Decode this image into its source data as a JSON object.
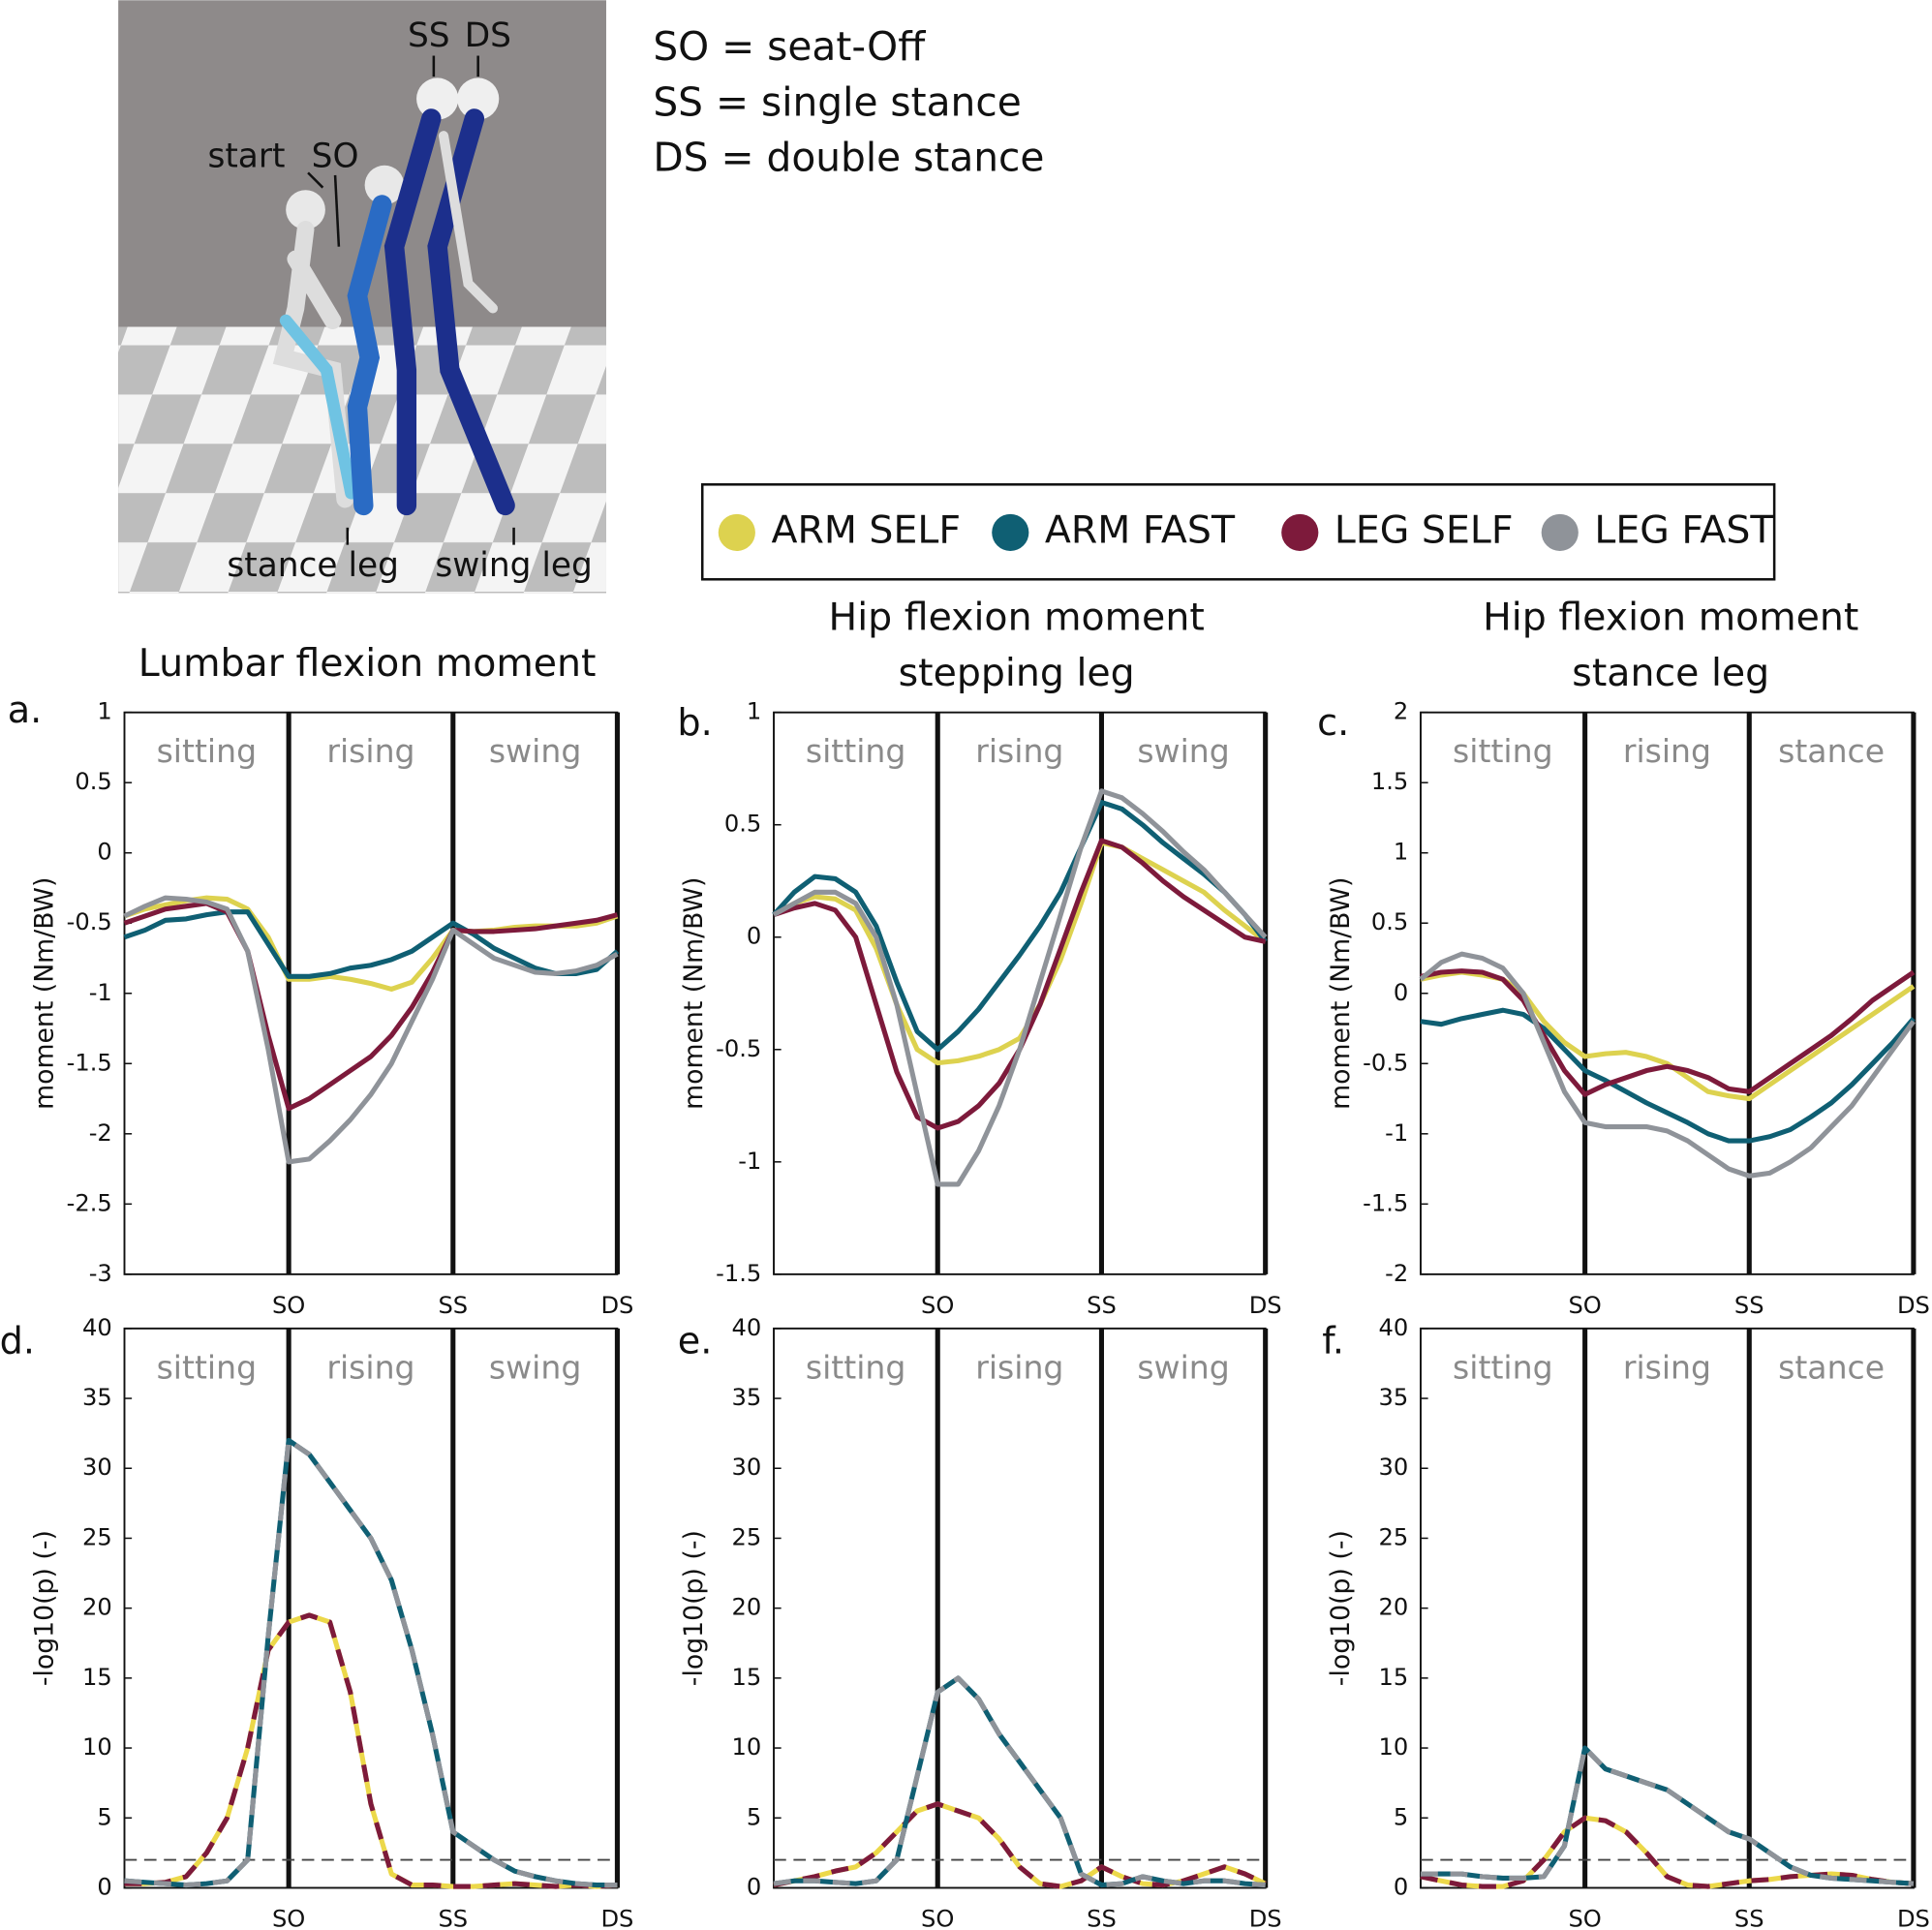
{
  "definitions": [
    "SO = seat-Off",
    "SS = single stance",
    "DS = double stance"
  ],
  "illustration": {
    "labels": [
      "SS",
      "DS",
      "start",
      "SO",
      "stance leg",
      "swing leg"
    ]
  },
  "chart_data": [
    {
      "type": "line",
      "panel_label": "a.",
      "title": [
        "Lumbar flexion moment"
      ],
      "y_label": "moment (Nm/BW)",
      "phases": [
        "sitting",
        "rising",
        "swing"
      ],
      "x": [
        0,
        0.125,
        0.25,
        0.375,
        0.5,
        0.625,
        0.75,
        0.875,
        1,
        1.125,
        1.25,
        1.375,
        1.5,
        1.625,
        1.75,
        1.875,
        2,
        2.125,
        2.25,
        2.375,
        2.5,
        2.625,
        2.75,
        2.875,
        3
      ],
      "xlim": [
        0,
        3
      ],
      "xticks": [
        {
          "value": 1,
          "label": "SO"
        },
        {
          "value": 2,
          "label": "SS"
        },
        {
          "value": 3,
          "label": "DS"
        }
      ],
      "ylim": [
        -3,
        1
      ],
      "yticks": [
        -3,
        -2.5,
        -2,
        -1.5,
        -1,
        -0.5,
        0,
        0.5,
        1
      ],
      "series": [
        {
          "name": "ARM SELF",
          "color": "#ddd24f",
          "values": [
            -0.45,
            -0.4,
            -0.37,
            -0.34,
            -0.32,
            -0.33,
            -0.4,
            -0.6,
            -0.9,
            -0.9,
            -0.88,
            -0.9,
            -0.93,
            -0.97,
            -0.92,
            -0.75,
            -0.55,
            -0.56,
            -0.55,
            -0.53,
            -0.52,
            -0.52,
            -0.52,
            -0.5,
            -0.45
          ]
        },
        {
          "name": "ARM FAST",
          "color": "#0f5f73",
          "values": [
            -0.6,
            -0.55,
            -0.48,
            -0.47,
            -0.44,
            -0.42,
            -0.42,
            -0.65,
            -0.88,
            -0.88,
            -0.86,
            -0.82,
            -0.8,
            -0.76,
            -0.7,
            -0.6,
            -0.5,
            -0.58,
            -0.68,
            -0.75,
            -0.82,
            -0.86,
            -0.86,
            -0.83,
            -0.7
          ]
        },
        {
          "name": "LEG SELF",
          "color": "#7d1a3b",
          "values": [
            -0.5,
            -0.45,
            -0.4,
            -0.38,
            -0.36,
            -0.42,
            -0.7,
            -1.3,
            -1.82,
            -1.75,
            -1.65,
            -1.55,
            -1.45,
            -1.3,
            -1.1,
            -0.85,
            -0.55,
            -0.56,
            -0.56,
            -0.55,
            -0.54,
            -0.52,
            -0.5,
            -0.48,
            -0.44
          ]
        },
        {
          "name": "LEG FAST",
          "color": "#8f9399",
          "values": [
            -0.45,
            -0.38,
            -0.32,
            -0.33,
            -0.35,
            -0.4,
            -0.7,
            -1.4,
            -2.2,
            -2.18,
            -2.05,
            -1.9,
            -1.72,
            -1.5,
            -1.2,
            -0.9,
            -0.55,
            -0.65,
            -0.75,
            -0.8,
            -0.85,
            -0.86,
            -0.84,
            -0.8,
            -0.72
          ]
        }
      ]
    },
    {
      "type": "line",
      "panel_label": "b.",
      "title": [
        "Hip flexion moment",
        "stepping leg"
      ],
      "y_label": "moment (Nm/BW)",
      "phases": [
        "sitting",
        "rising",
        "swing"
      ],
      "x": [
        0,
        0.125,
        0.25,
        0.375,
        0.5,
        0.625,
        0.75,
        0.875,
        1,
        1.125,
        1.25,
        1.375,
        1.5,
        1.625,
        1.75,
        1.875,
        2,
        2.125,
        2.25,
        2.375,
        2.5,
        2.625,
        2.75,
        2.875,
        3
      ],
      "xlim": [
        0,
        3
      ],
      "xticks": [
        {
          "value": 1,
          "label": "SO"
        },
        {
          "value": 2,
          "label": "SS"
        },
        {
          "value": 3,
          "label": "DS"
        }
      ],
      "ylim": [
        -1.5,
        1
      ],
      "yticks": [
        -1.5,
        -1,
        -0.5,
        0,
        0.5,
        1
      ],
      "series": [
        {
          "name": "ARM SELF",
          "color": "#ddd24f",
          "values": [
            0.1,
            0.15,
            0.18,
            0.17,
            0.12,
            -0.05,
            -0.3,
            -0.5,
            -0.56,
            -0.55,
            -0.53,
            -0.5,
            -0.45,
            -0.3,
            -0.1,
            0.15,
            0.42,
            0.4,
            0.35,
            0.3,
            0.25,
            0.2,
            0.12,
            0.05,
            -0.02
          ]
        },
        {
          "name": "ARM FAST",
          "color": "#0f5f73",
          "values": [
            0.1,
            0.2,
            0.27,
            0.26,
            0.2,
            0.05,
            -0.2,
            -0.42,
            -0.5,
            -0.42,
            -0.32,
            -0.2,
            -0.08,
            0.05,
            0.2,
            0.4,
            0.6,
            0.57,
            0.5,
            0.42,
            0.35,
            0.28,
            0.2,
            0.1,
            -0.02
          ]
        },
        {
          "name": "LEG SELF",
          "color": "#7d1a3b",
          "values": [
            0.1,
            0.13,
            0.15,
            0.12,
            0,
            -0.3,
            -0.6,
            -0.8,
            -0.85,
            -0.82,
            -0.75,
            -0.65,
            -0.5,
            -0.3,
            -0.05,
            0.2,
            0.43,
            0.4,
            0.33,
            0.25,
            0.18,
            0.12,
            0.06,
            0,
            -0.02
          ]
        },
        {
          "name": "LEG FAST",
          "color": "#8f9399",
          "values": [
            0.1,
            0.15,
            0.2,
            0.2,
            0.15,
            0,
            -0.3,
            -0.7,
            -1.1,
            -1.1,
            -0.95,
            -0.75,
            -0.5,
            -0.2,
            0.1,
            0.4,
            0.65,
            0.62,
            0.55,
            0.47,
            0.38,
            0.3,
            0.2,
            0.1,
            0
          ]
        }
      ]
    },
    {
      "type": "line",
      "panel_label": "c.",
      "title": [
        "Hip flexion moment",
        "stance leg"
      ],
      "y_label": "moment (Nm/BW)",
      "phases": [
        "sitting",
        "rising",
        "stance"
      ],
      "x": [
        0,
        0.125,
        0.25,
        0.375,
        0.5,
        0.625,
        0.75,
        0.875,
        1,
        1.125,
        1.25,
        1.375,
        1.5,
        1.625,
        1.75,
        1.875,
        2,
        2.125,
        2.25,
        2.375,
        2.5,
        2.625,
        2.75,
        2.875,
        3
      ],
      "xlim": [
        0,
        3
      ],
      "xticks": [
        {
          "value": 1,
          "label": "SO"
        },
        {
          "value": 2,
          "label": "SS"
        },
        {
          "value": 3,
          "label": "DS"
        }
      ],
      "ylim": [
        -2,
        2
      ],
      "yticks": [
        -2,
        -1.5,
        -1,
        -0.5,
        0,
        0.5,
        1,
        1.5,
        2
      ],
      "series": [
        {
          "name": "ARM SELF",
          "color": "#ddd24f",
          "values": [
            0.1,
            0.13,
            0.15,
            0.13,
            0.1,
            0,
            -0.2,
            -0.35,
            -0.45,
            -0.43,
            -0.42,
            -0.45,
            -0.5,
            -0.6,
            -0.7,
            -0.73,
            -0.75,
            -0.65,
            -0.55,
            -0.45,
            -0.35,
            -0.25,
            -0.15,
            -0.05,
            0.05
          ]
        },
        {
          "name": "ARM FAST",
          "color": "#0f5f73",
          "values": [
            -0.2,
            -0.22,
            -0.18,
            -0.15,
            -0.12,
            -0.15,
            -0.25,
            -0.4,
            -0.55,
            -0.62,
            -0.7,
            -0.78,
            -0.85,
            -0.92,
            -1,
            -1.05,
            -1.05,
            -1.02,
            -0.97,
            -0.88,
            -0.78,
            -0.65,
            -0.5,
            -0.35,
            -0.18
          ]
        },
        {
          "name": "LEG SELF",
          "color": "#7d1a3b",
          "values": [
            0.12,
            0.15,
            0.16,
            0.15,
            0.1,
            -0.05,
            -0.3,
            -0.55,
            -0.72,
            -0.65,
            -0.6,
            -0.55,
            -0.52,
            -0.55,
            -0.6,
            -0.68,
            -0.7,
            -0.6,
            -0.5,
            -0.4,
            -0.3,
            -0.18,
            -0.05,
            0.05,
            0.15
          ]
        },
        {
          "name": "LEG FAST",
          "color": "#8f9399",
          "values": [
            0.1,
            0.22,
            0.28,
            0.25,
            0.18,
            0,
            -0.35,
            -0.7,
            -0.92,
            -0.95,
            -0.95,
            -0.95,
            -0.98,
            -1.05,
            -1.15,
            -1.25,
            -1.3,
            -1.28,
            -1.2,
            -1.1,
            -0.95,
            -0.8,
            -0.6,
            -0.4,
            -0.2
          ]
        }
      ]
    },
    {
      "type": "line",
      "panel_label": "d.",
      "y_label": "-log10(p) (-)",
      "phases": [
        "sitting",
        "rising",
        "swing"
      ],
      "threshold": 2,
      "x": [
        0,
        0.125,
        0.25,
        0.375,
        0.5,
        0.625,
        0.75,
        0.875,
        1,
        1.125,
        1.25,
        1.375,
        1.5,
        1.625,
        1.75,
        1.875,
        2,
        2.125,
        2.25,
        2.375,
        2.5,
        2.625,
        2.75,
        2.875,
        3
      ],
      "xlim": [
        0,
        3
      ],
      "xticks": [
        {
          "value": 1,
          "label": "SO"
        },
        {
          "value": 2,
          "label": "SS"
        },
        {
          "value": 3,
          "label": "DS"
        }
      ],
      "ylim": [
        0,
        40
      ],
      "yticks": [
        0,
        5,
        10,
        15,
        20,
        25,
        30,
        35,
        40
      ],
      "series": [
        {
          "colors": [
            "#ecd84a",
            "#7d1a3b"
          ],
          "values": [
            0.3,
            0.3,
            0.4,
            0.8,
            2.5,
            5,
            10,
            17,
            19,
            19.5,
            19,
            14,
            6,
            1,
            0.2,
            0.2,
            0.1,
            0.1,
            0.2,
            0.3,
            0.2,
            0.1,
            0.2,
            0.1,
            0.2
          ]
        },
        {
          "colors": [
            "#0f5f73",
            "#8f9399"
          ],
          "values": [
            0.5,
            0.4,
            0.3,
            0.2,
            0.3,
            0.5,
            2,
            18,
            32,
            31,
            29,
            27,
            25,
            22,
            17,
            11,
            4,
            3,
            2,
            1.2,
            0.8,
            0.5,
            0.3,
            0.2,
            0.2
          ]
        }
      ]
    },
    {
      "type": "line",
      "panel_label": "e.",
      "y_label": "-log10(p) (-)",
      "phases": [
        "sitting",
        "rising",
        "swing"
      ],
      "threshold": 2,
      "x": [
        0,
        0.125,
        0.25,
        0.375,
        0.5,
        0.625,
        0.75,
        0.875,
        1,
        1.125,
        1.25,
        1.375,
        1.5,
        1.625,
        1.75,
        1.875,
        2,
        2.125,
        2.25,
        2.375,
        2.5,
        2.625,
        2.75,
        2.875,
        3
      ],
      "xlim": [
        0,
        3
      ],
      "xticks": [
        {
          "value": 1,
          "label": "SO"
        },
        {
          "value": 2,
          "label": "SS"
        },
        {
          "value": 3,
          "label": "DS"
        }
      ],
      "ylim": [
        0,
        40
      ],
      "yticks": [
        0,
        5,
        10,
        15,
        20,
        25,
        30,
        35,
        40
      ],
      "series": [
        {
          "colors": [
            "#ecd84a",
            "#7d1a3b"
          ],
          "values": [
            0.2,
            0.5,
            0.8,
            1.2,
            1.5,
            2.5,
            4,
            5.5,
            6,
            5.5,
            5,
            3.5,
            1.5,
            0.3,
            0.1,
            0.5,
            1.5,
            0.8,
            0.3,
            0.2,
            0.5,
            1,
            1.5,
            1,
            0.3
          ]
        },
        {
          "colors": [
            "#0f5f73",
            "#8f9399"
          ],
          "values": [
            0.3,
            0.5,
            0.5,
            0.4,
            0.3,
            0.5,
            2,
            8,
            14,
            15,
            13.5,
            11,
            9,
            7,
            5,
            1,
            0.2,
            0.3,
            0.8,
            0.5,
            0.3,
            0.5,
            0.5,
            0.3,
            0.2
          ]
        }
      ]
    },
    {
      "type": "line",
      "panel_label": "f.",
      "y_label": "-log10(p) (-)",
      "phases": [
        "sitting",
        "rising",
        "stance"
      ],
      "threshold": 2,
      "x": [
        0,
        0.125,
        0.25,
        0.375,
        0.5,
        0.625,
        0.75,
        0.875,
        1,
        1.125,
        1.25,
        1.375,
        1.5,
        1.625,
        1.75,
        1.875,
        2,
        2.125,
        2.25,
        2.375,
        2.5,
        2.625,
        2.75,
        2.875,
        3
      ],
      "xlim": [
        0,
        3
      ],
      "xticks": [
        {
          "value": 1,
          "label": "SO"
        },
        {
          "value": 2,
          "label": "SS"
        },
        {
          "value": 3,
          "label": "DS"
        }
      ],
      "ylim": [
        0,
        40
      ],
      "yticks": [
        0,
        5,
        10,
        15,
        20,
        25,
        30,
        35,
        40
      ],
      "series": [
        {
          "colors": [
            "#ecd84a",
            "#7d1a3b"
          ],
          "values": [
            0.8,
            0.5,
            0.2,
            0.1,
            0.1,
            0.5,
            2,
            4,
            5,
            4.8,
            4,
            2.5,
            0.8,
            0.2,
            0.1,
            0.3,
            0.5,
            0.6,
            0.8,
            0.9,
            1,
            0.9,
            0.6,
            0.4,
            0.3
          ]
        },
        {
          "colors": [
            "#0f5f73",
            "#8f9399"
          ],
          "values": [
            1,
            1,
            1,
            0.8,
            0.7,
            0.7,
            0.8,
            3,
            10,
            8.5,
            8,
            7.5,
            7,
            6,
            5,
            4,
            3.5,
            2.5,
            1.5,
            0.9,
            0.7,
            0.6,
            0.5,
            0.4,
            0.3
          ]
        }
      ]
    }
  ]
}
